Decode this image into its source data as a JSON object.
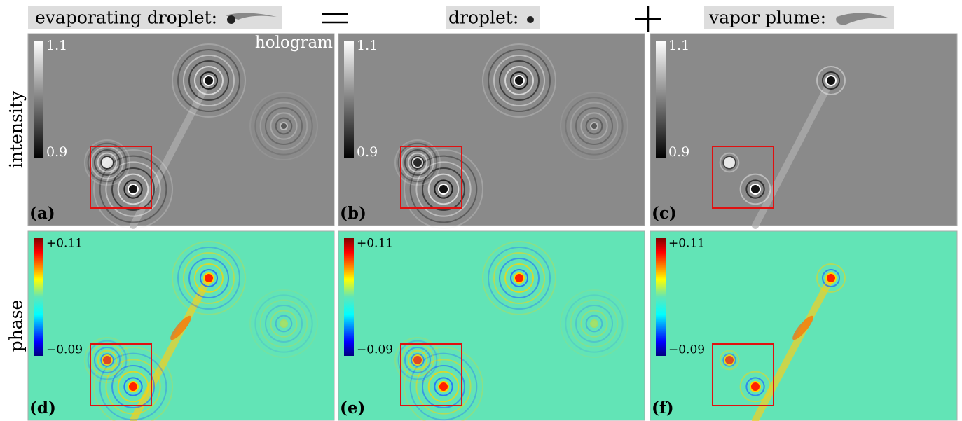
{
  "header": {
    "terms": [
      {
        "label": "evaporating droplet:"
      },
      {
        "label": "droplet:"
      },
      {
        "label": "vapor plume:"
      }
    ]
  },
  "rows": [
    {
      "label": "intensity"
    },
    {
      "label": "phase"
    }
  ],
  "panels": [
    {
      "label": "(a)",
      "note": "hologram",
      "colorbar": {
        "max": "1.1",
        "min": "0.9"
      }
    },
    {
      "label": "(b)",
      "colorbar": {
        "max": "1.1",
        "min": "0.9"
      }
    },
    {
      "label": "(c)",
      "colorbar": {
        "max": "1.1",
        "min": "0.9"
      }
    },
    {
      "label": "(d)",
      "colorbar": {
        "max": "+0.11",
        "min": "−0.09"
      }
    },
    {
      "label": "(e)",
      "colorbar": {
        "max": "+0.11",
        "min": "−0.09"
      }
    },
    {
      "label": "(f)",
      "colorbar": {
        "max": "+0.11",
        "min": "−0.09"
      }
    }
  ]
}
